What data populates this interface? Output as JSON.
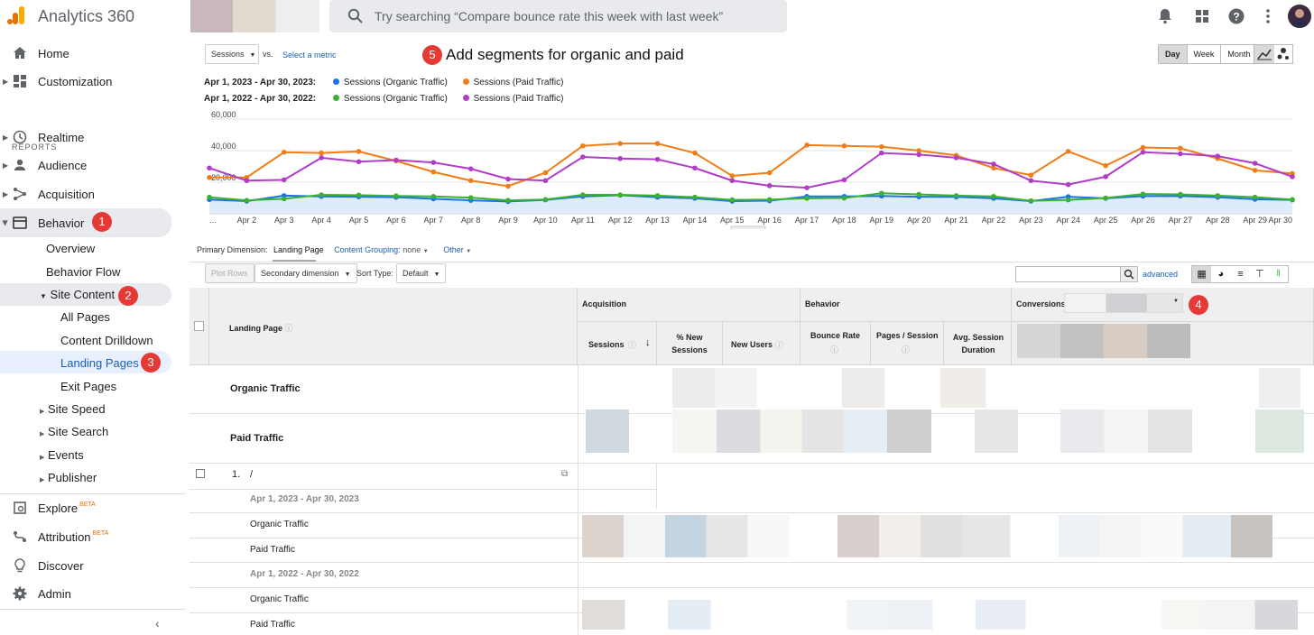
{
  "app": {
    "title": "Analytics 360"
  },
  "search": {
    "placeholder": "Try searching “Compare bounce rate this week with last week”"
  },
  "sidebar": {
    "reports_label": "REPORTS",
    "home": "Home",
    "customization": "Customization",
    "realtime": "Realtime",
    "audience": "Audience",
    "acquisition": "Acquisition",
    "behavior": "Behavior",
    "overview": "Overview",
    "behavior_flow": "Behavior Flow",
    "site_content": "Site Content",
    "all_pages": "All Pages",
    "content_drilldown": "Content Drilldown",
    "landing_pages": "Landing Pages",
    "exit_pages": "Exit Pages",
    "site_speed": "Site Speed",
    "site_search": "Site Search",
    "events": "Events",
    "publisher": "Publisher",
    "explore": "Explore",
    "attribution": "Attribution",
    "beta": "BETA",
    "discover": "Discover",
    "admin": "Admin"
  },
  "badges": {
    "b1": "1",
    "b2": "2",
    "b3": "3",
    "b4": "4",
    "b5": "5"
  },
  "annotation": "Add segments for organic and paid",
  "chart_controls": {
    "metric": "Sessions",
    "vs": "vs.",
    "select_metric": "Select a metric",
    "day": "Day",
    "week": "Week",
    "month": "Month"
  },
  "legend": {
    "range_2023": "Apr 1, 2023 - Apr 30, 2023:",
    "range_2022": "Apr 1, 2022 - Apr 30, 2022:",
    "organic": "Sessions (Organic Traffic)",
    "paid": "Sessions (Paid Traffic)"
  },
  "colors": {
    "blue": "#1a73e8",
    "orange": "#f07d18",
    "green": "#3cb034",
    "purple": "#b03cc8"
  },
  "chart_data": {
    "type": "line",
    "categories": [
      "Apr 1",
      "Apr 2",
      "Apr 3",
      "Apr 4",
      "Apr 5",
      "Apr 6",
      "Apr 7",
      "Apr 8",
      "Apr 9",
      "Apr 10",
      "Apr 11",
      "Apr 12",
      "Apr 13",
      "Apr 14",
      "Apr 15",
      "Apr 16",
      "Apr 17",
      "Apr 18",
      "Apr 19",
      "Apr 20",
      "Apr 21",
      "Apr 22",
      "Apr 23",
      "Apr 24",
      "Apr 25",
      "Apr 26",
      "Apr 27",
      "Apr 28",
      "Apr 29",
      "Apr 30"
    ],
    "tick_labels": [
      "...",
      "Apr 2",
      "Apr 3",
      "Apr 4",
      "Apr 5",
      "Apr 6",
      "Apr 7",
      "Apr 8",
      "Apr 9",
      "Apr 10",
      "Apr 11",
      "Apr 12",
      "Apr 13",
      "Apr 14",
      "Apr 15",
      "Apr 16",
      "Apr 17",
      "Apr 18",
      "Apr 19",
      "Apr 20",
      "Apr 21",
      "Apr 22",
      "Apr 23",
      "Apr 24",
      "Apr 25",
      "Apr 26",
      "Apr 27",
      "Apr 28",
      "Apr 29",
      "Apr 30"
    ],
    "y_ticks": [
      "60,000",
      "40,000",
      "20,000"
    ],
    "ylim": [
      0,
      60000
    ],
    "series": [
      {
        "name": "Sessions (Organic Traffic) 2023",
        "color": "#1a73e8",
        "values": [
          9000,
          8000,
          11500,
          11000,
          10800,
          10500,
          9500,
          8500,
          7800,
          8800,
          11000,
          11800,
          10500,
          9800,
          8000,
          8300,
          11000,
          11000,
          11300,
          10800,
          10700,
          9800,
          8000,
          10800,
          9800,
          11200,
          11300,
          10500,
          9200,
          8800
        ]
      },
      {
        "name": "Sessions (Paid Traffic) 2023",
        "color": "#f07d18",
        "values": [
          23000,
          23000,
          39000,
          38500,
          39500,
          33500,
          26500,
          21000,
          17500,
          26000,
          43000,
          44500,
          44500,
          38500,
          24000,
          26000,
          43500,
          43000,
          42500,
          40000,
          37000,
          29000,
          24500,
          39500,
          30500,
          42000,
          41500,
          35000,
          27500,
          25500
        ]
      },
      {
        "name": "Sessions (Organic Traffic) 2022",
        "color": "#3cb034",
        "values": [
          10500,
          8500,
          9500,
          12000,
          11800,
          11300,
          11000,
          10200,
          8500,
          9000,
          12000,
          12000,
          11500,
          10500,
          8800,
          9000,
          9800,
          10000,
          13000,
          12300,
          11500,
          11000,
          8200,
          8800,
          10000,
          12500,
          12300,
          11500,
          10500,
          9000
        ]
      },
      {
        "name": "Sessions (Paid Traffic) 2022",
        "color": "#b03cc8",
        "values": [
          29000,
          21000,
          21500,
          35500,
          33000,
          34000,
          32500,
          28500,
          22000,
          21000,
          36000,
          35000,
          34500,
          29000,
          21000,
          17800,
          16500,
          21500,
          38500,
          37500,
          35500,
          31500,
          21000,
          18500,
          23500,
          39000,
          38000,
          36500,
          32000,
          23500
        ]
      }
    ]
  },
  "table_controls": {
    "primary_dimension": "Primary Dimension:",
    "landing_page": "Landing Page",
    "content_grouping": "Content Grouping:",
    "none": "none",
    "other": "Other",
    "plot_rows": "Plot Rows",
    "secondary_dimension": "Secondary dimension",
    "sort_type": "Sort Type:",
    "default": "Default",
    "advanced": "advanced"
  },
  "table": {
    "landing_page_header": "Landing Page",
    "acquisition": "Acquisition",
    "behavior": "Behavior",
    "conversions": "Conversions",
    "sessions": "Sessions",
    "pct_new_sessions": "% New Sessions",
    "new_users": "New Users",
    "bounce_rate": "Bounce Rate",
    "pages_session": "Pages / Session",
    "avg_session_duration": "Avg. Session Duration",
    "organic": "Organic Traffic",
    "paid": "Paid Traffic",
    "row1_index": "1.",
    "row1_path": "/",
    "range_2023": "Apr 1, 2023 - Apr 30, 2023",
    "range_2022": "Apr 1, 2022 - Apr 30, 2022"
  }
}
